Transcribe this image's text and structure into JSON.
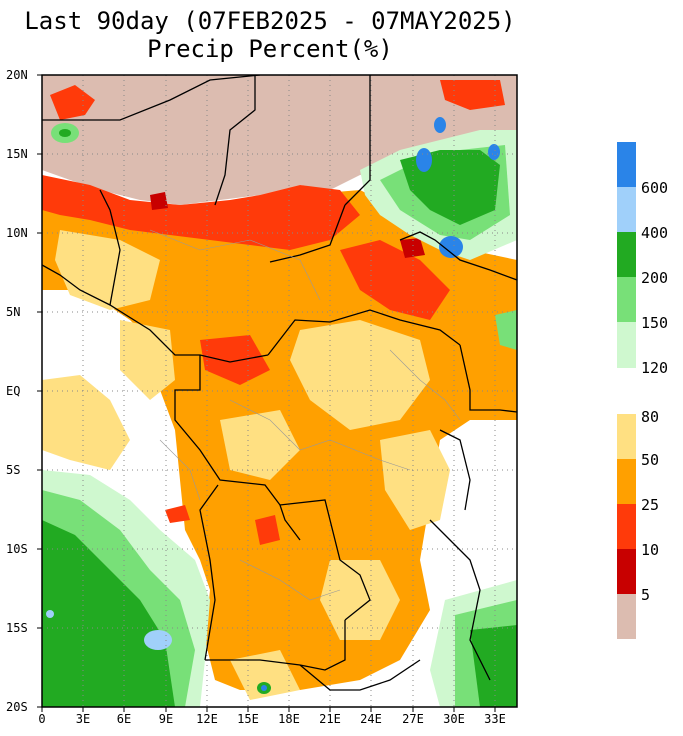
{
  "title": {
    "line1": "Last 90day (07FEB2025 - 07MAY2025)",
    "line2": "Precip Percent(%)"
  },
  "axes": {
    "y_labels": [
      "20N",
      "15N",
      "10N",
      "5N",
      "EQ",
      "5S",
      "10S",
      "15S",
      "20S"
    ],
    "x_labels": [
      "0",
      "3E",
      "6E",
      "9E",
      "12E",
      "15E",
      "18E",
      "21E",
      "24E",
      "27E",
      "30E",
      "33E"
    ],
    "lat_range": [
      -20,
      20
    ],
    "lon_range": [
      0,
      35
    ]
  },
  "legend": {
    "wet_scale": [
      {
        "label": "600",
        "color": "#2a84e8"
      },
      {
        "label": "400",
        "color": "#a0d0fa"
      },
      {
        "label": "200",
        "color": "#22aa22"
      },
      {
        "label": "150",
        "color": "#78e078"
      },
      {
        "label": "120",
        "color": "#cff8cf"
      }
    ],
    "dry_scale": [
      {
        "label": "80",
        "color": "#ffe082"
      },
      {
        "label": "50",
        "color": "#ffa000"
      },
      {
        "label": "25",
        "color": "#ff3a0a"
      },
      {
        "label": "10",
        "color": "#c80000"
      },
      {
        "label": "5",
        "color": "#dcbcb0"
      }
    ]
  },
  "colors": {
    "dry_5": "#dcbcb0",
    "dry_10": "#c80000",
    "dry_25": "#ff3a0a",
    "dry_50": "#ffa000",
    "dry_80": "#ffe082",
    "wet_120": "#cff8cf",
    "wet_150": "#78e078",
    "wet_200": "#22aa22",
    "wet_400": "#a0d0fa",
    "wet_600": "#2a84e8",
    "ocean": "#ffffff",
    "border": "#000000",
    "admin_border": "#999999"
  }
}
